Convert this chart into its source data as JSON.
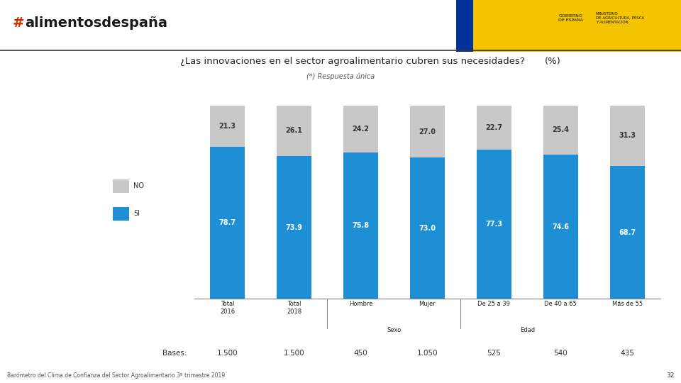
{
  "title": "¿Las innovaciones en el sector agroalimentario cubren sus necesidades?",
  "title_pct": "(%)",
  "subtitle": "(*) Respuesta única",
  "cat_top": [
    "Total\n2016",
    "Total\n2018",
    "Hombre",
    "Mujer",
    "De 25 a 39",
    "De 40 a 65",
    "Más de 55"
  ],
  "group_labels": [
    [
      "Sexo",
      2,
      3
    ],
    [
      "Edad",
      4,
      5,
      6
    ]
  ],
  "si_values": [
    78.7,
    73.9,
    75.8,
    73.0,
    77.3,
    74.6,
    68.7
  ],
  "no_values": [
    21.3,
    26.1,
    24.2,
    27.0,
    22.7,
    25.4,
    31.3
  ],
  "bases_label": "Bases:",
  "bases": [
    "1.500",
    "1.500",
    "450",
    "1.050",
    "525",
    "540",
    "435"
  ],
  "color_si": "#1e8fd5",
  "color_no": "#c8c8c8",
  "legend_no": "NO",
  "legend_si": "SI",
  "footer": "Barómetro del Clima de Confianza del Sector Agroalimentario 3º trimestre 2019",
  "page_number": "32",
  "header_line_color": "#333333",
  "header_bg": "#ffffff",
  "yellow_bg": "#f5c400",
  "logo_text": "#alimentosdespaña",
  "logo_hash_color": "#cc0000",
  "logo_text_color": "#1a1a1a"
}
